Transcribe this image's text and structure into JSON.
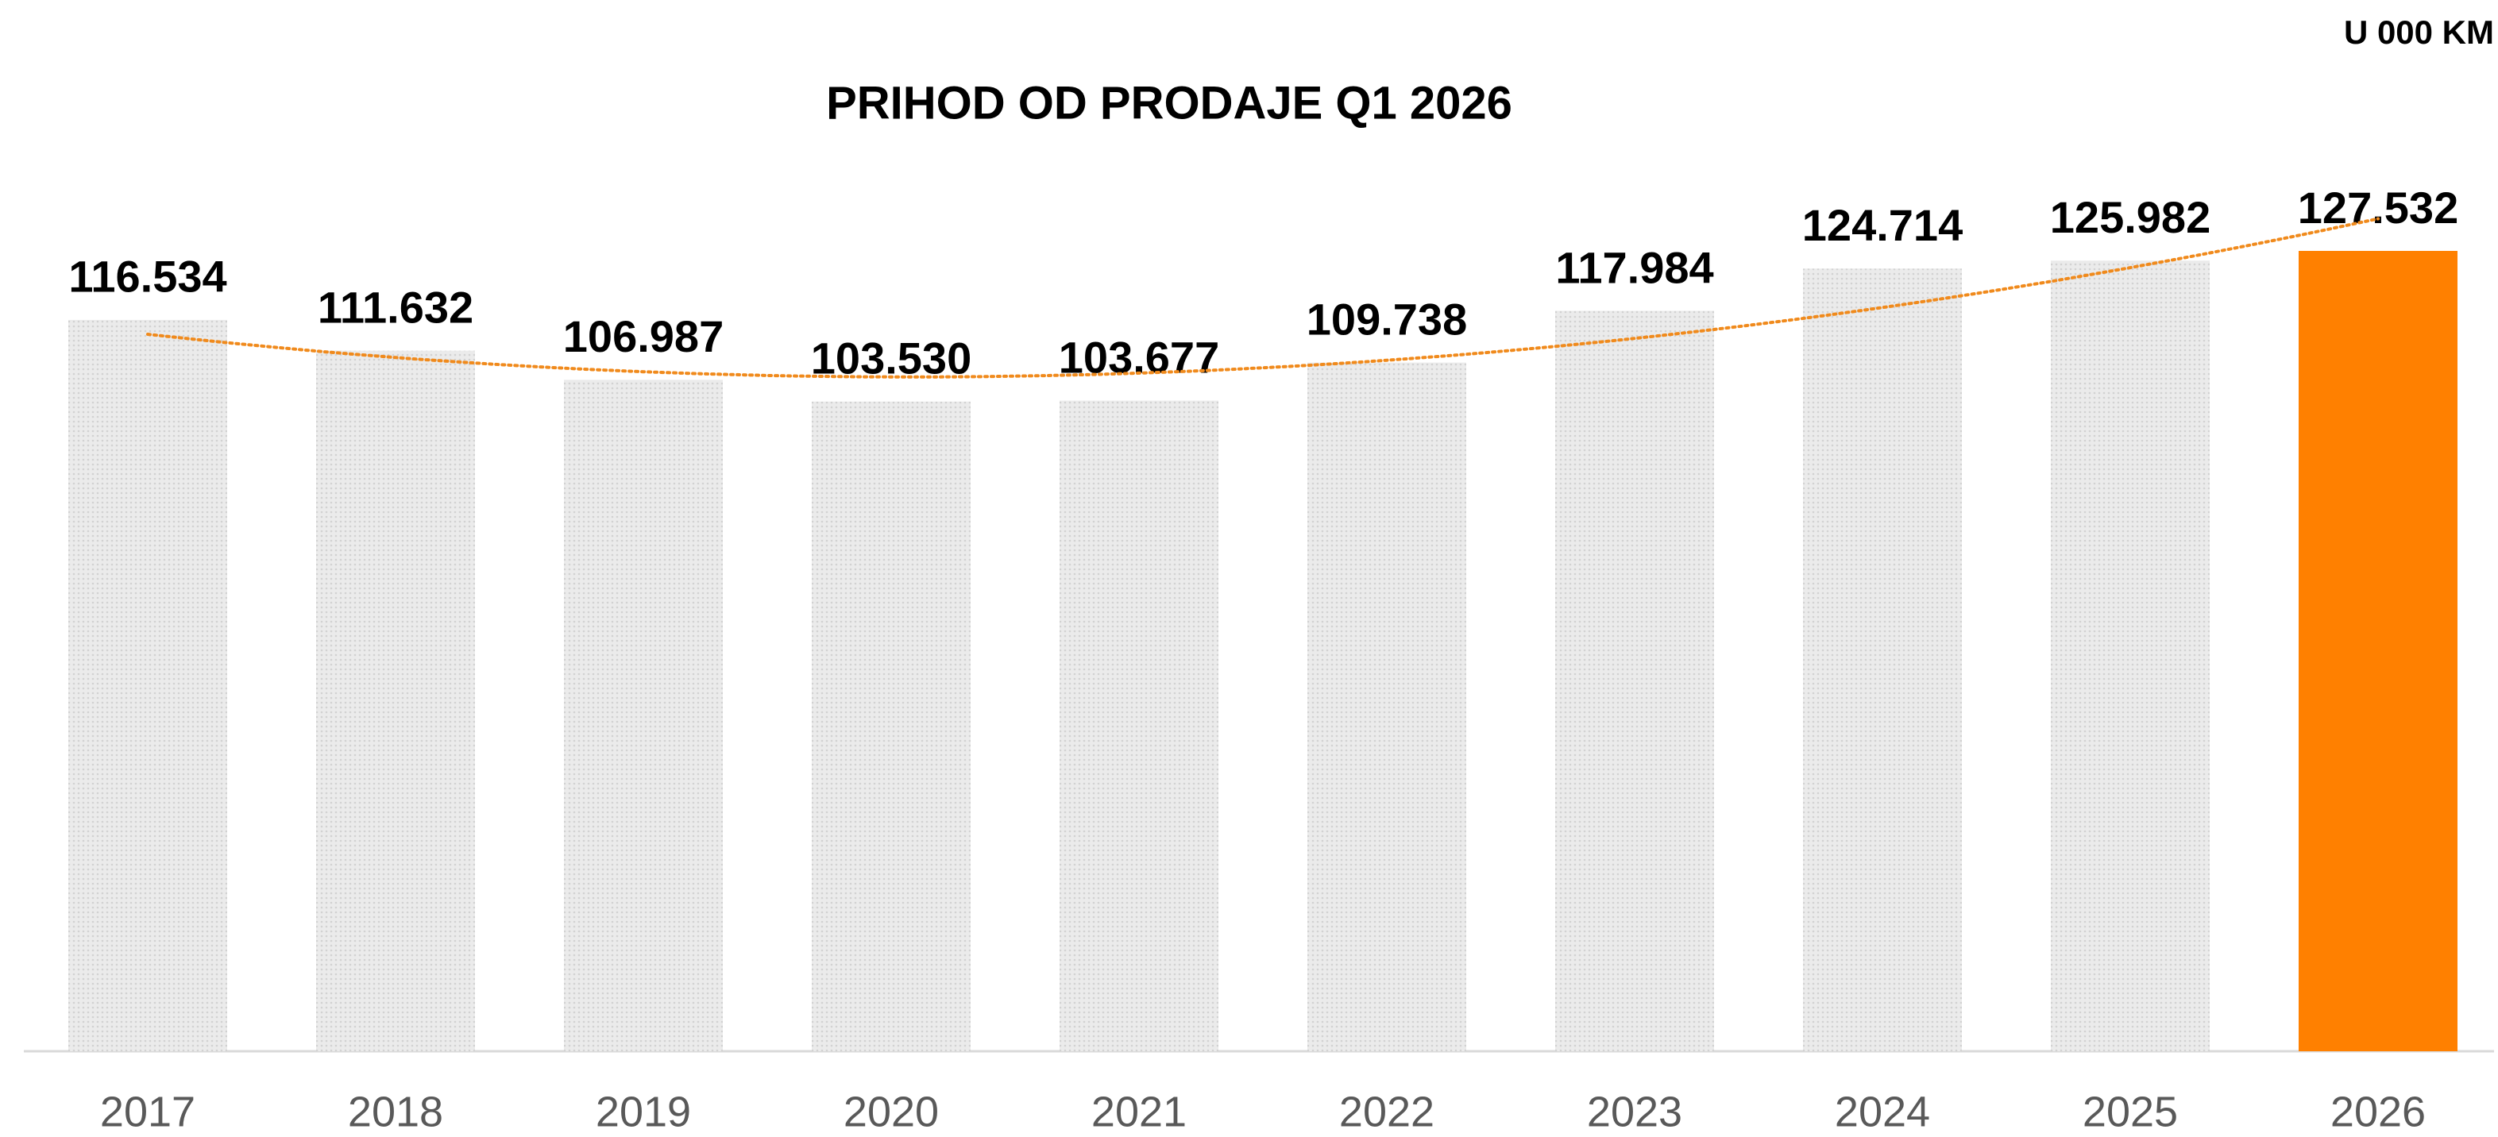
{
  "chart_data": {
    "type": "bar",
    "title": "PRIHOD OD PRODAJE Q1 2026",
    "unit_label": "U 000 KM",
    "categories": [
      "2017",
      "2018",
      "2019",
      "2020",
      "2021",
      "2022",
      "2023",
      "2024",
      "2025",
      "2026"
    ],
    "values": [
      116534,
      111632,
      106987,
      103530,
      103677,
      109738,
      117984,
      124714,
      125982,
      127532
    ],
    "value_labels": [
      "116.534",
      "111.632",
      "106.987",
      "103.530",
      "103.677",
      "109.738",
      "117.984",
      "124.714",
      "125.982",
      "127.532"
    ],
    "colors": [
      "#e4e4e4",
      "#e4e4e4",
      "#e4e4e4",
      "#e4e4e4",
      "#e4e4e4",
      "#e4e4e4",
      "#e4e4e4",
      "#e4e4e4",
      "#e4e4e4",
      "#ff8000"
    ],
    "trendline": {
      "type": "polynomial",
      "order": 2,
      "color": "#f08a1c"
    }
  }
}
